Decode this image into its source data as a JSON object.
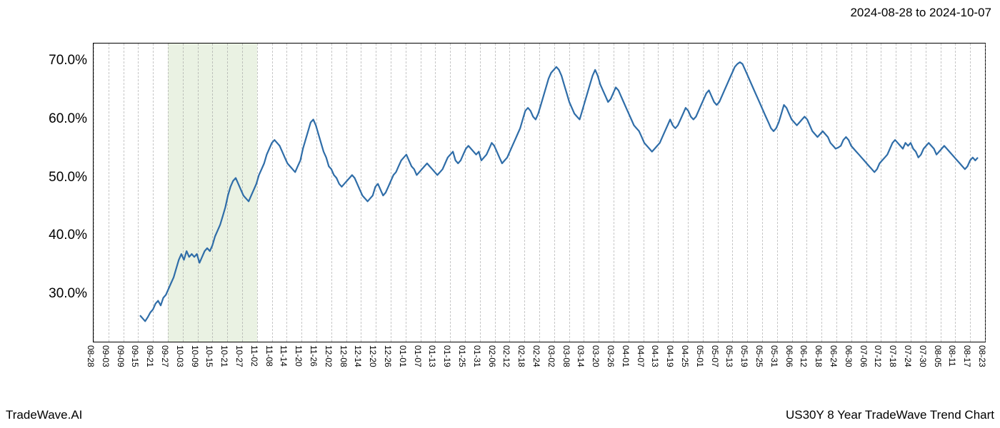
{
  "header": {
    "date_range": "2024-08-28 to 2024-10-07"
  },
  "footer": {
    "left": "TradeWave.AI",
    "right": "US30Y 8 Year TradeWave Trend Chart"
  },
  "chart": {
    "type": "line",
    "background_color": "#ffffff",
    "line_color": "#2f6da8",
    "line_width": 2.2,
    "grid_color": "#999999",
    "grid_dash": "4,3",
    "highlight": {
      "color": "#d8e8cc",
      "opacity": 0.55,
      "x_start_index": 5,
      "x_end_index": 11
    },
    "y_axis": {
      "min": 22,
      "max": 73,
      "ticks": [
        30,
        40,
        50,
        60,
        70
      ],
      "tick_format_suffix": ".0%",
      "label_fontsize": 19
    },
    "x_axis": {
      "labels": [
        "08-28",
        "09-03",
        "09-09",
        "09-15",
        "09-21",
        "09-27",
        "10-03",
        "10-09",
        "10-15",
        "10-21",
        "10-27",
        "11-02",
        "11-08",
        "11-14",
        "11-20",
        "11-26",
        "12-02",
        "12-08",
        "12-14",
        "12-20",
        "12-26",
        "01-01",
        "01-07",
        "01-13",
        "01-19",
        "01-25",
        "01-31",
        "02-06",
        "02-12",
        "02-18",
        "02-24",
        "03-02",
        "03-08",
        "03-14",
        "03-20",
        "03-26",
        "04-01",
        "04-07",
        "04-13",
        "04-19",
        "04-25",
        "05-01",
        "05-07",
        "05-13",
        "05-19",
        "05-25",
        "05-31",
        "06-06",
        "06-12",
        "06-18",
        "06-24",
        "06-30",
        "07-06",
        "07-12",
        "07-18",
        "07-24",
        "07-30",
        "08-05",
        "08-11",
        "08-17",
        "08-23"
      ],
      "label_fontsize": 12,
      "label_rotation_deg": 90
    },
    "series": [
      26.5,
      26.0,
      25.5,
      26.2,
      27.0,
      27.5,
      28.5,
      29.0,
      28.2,
      29.5,
      30.0,
      31.0,
      32.0,
      33.0,
      34.5,
      36.0,
      37.0,
      36.0,
      37.5,
      36.5,
      37.0,
      36.5,
      37.0,
      35.5,
      36.5,
      37.5,
      38.0,
      37.5,
      38.5,
      40.0,
      41.0,
      42.0,
      43.5,
      45.0,
      47.0,
      48.5,
      49.5,
      50.0,
      49.0,
      48.0,
      47.0,
      46.5,
      46.0,
      47.0,
      48.0,
      49.0,
      50.5,
      51.5,
      52.5,
      54.0,
      55.0,
      56.0,
      56.5,
      56.0,
      55.5,
      54.5,
      53.5,
      52.5,
      52.0,
      51.5,
      51.0,
      52.0,
      53.0,
      55.0,
      56.5,
      58.0,
      59.5,
      60.0,
      59.0,
      57.5,
      56.0,
      54.5,
      53.5,
      52.0,
      51.5,
      50.5,
      50.0,
      49.0,
      48.5,
      49.0,
      49.5,
      50.0,
      50.5,
      50.0,
      49.0,
      48.0,
      47.0,
      46.5,
      46.0,
      46.5,
      47.0,
      48.5,
      49.0,
      48.0,
      47.0,
      47.5,
      48.5,
      49.5,
      50.5,
      51.0,
      52.0,
      53.0,
      53.5,
      54.0,
      53.0,
      52.0,
      51.5,
      50.5,
      51.0,
      51.5,
      52.0,
      52.5,
      52.0,
      51.5,
      51.0,
      50.5,
      51.0,
      51.5,
      52.5,
      53.5,
      54.0,
      54.5,
      53.0,
      52.5,
      53.0,
      54.0,
      55.0,
      55.5,
      55.0,
      54.5,
      54.0,
      54.5,
      53.0,
      53.5,
      54.0,
      55.0,
      56.0,
      55.5,
      54.5,
      53.5,
      52.5,
      53.0,
      53.5,
      54.5,
      55.5,
      56.5,
      57.5,
      58.5,
      60.0,
      61.5,
      62.0,
      61.5,
      60.5,
      60.0,
      61.0,
      62.5,
      64.0,
      65.5,
      67.0,
      68.0,
      68.5,
      69.0,
      68.5,
      67.5,
      66.0,
      64.5,
      63.0,
      62.0,
      61.0,
      60.5,
      60.0,
      61.5,
      63.0,
      64.5,
      66.0,
      67.5,
      68.5,
      67.5,
      66.0,
      65.0,
      64.0,
      63.0,
      63.5,
      64.5,
      65.5,
      65.0,
      64.0,
      63.0,
      62.0,
      61.0,
      60.0,
      59.0,
      58.5,
      58.0,
      57.0,
      56.0,
      55.5,
      55.0,
      54.5,
      55.0,
      55.5,
      56.0,
      57.0,
      58.0,
      59.0,
      60.0,
      59.0,
      58.5,
      59.0,
      60.0,
      61.0,
      62.0,
      61.5,
      60.5,
      60.0,
      60.5,
      61.5,
      62.5,
      63.5,
      64.5,
      65.0,
      64.0,
      63.0,
      62.5,
      63.0,
      64.0,
      65.0,
      66.0,
      67.0,
      68.0,
      69.0,
      69.5,
      69.8,
      69.5,
      68.5,
      67.5,
      66.5,
      65.5,
      64.5,
      63.5,
      62.5,
      61.5,
      60.5,
      59.5,
      58.5,
      58.0,
      58.5,
      59.5,
      61.0,
      62.5,
      62.0,
      61.0,
      60.0,
      59.5,
      59.0,
      59.5,
      60.0,
      60.5,
      60.0,
      59.0,
      58.0,
      57.5,
      57.0,
      57.5,
      58.0,
      57.5,
      57.0,
      56.0,
      55.5,
      55.0,
      55.2,
      55.5,
      56.5,
      57.0,
      56.5,
      55.5,
      55.0,
      54.5,
      54.0,
      53.5,
      53.0,
      52.5,
      52.0,
      51.5,
      51.0,
      51.5,
      52.5,
      53.0,
      53.5,
      54.0,
      55.0,
      56.0,
      56.5,
      56.0,
      55.5,
      55.0,
      56.0,
      55.5,
      56.0,
      55.0,
      54.5,
      53.5,
      54.0,
      55.0,
      55.5,
      56.0,
      55.5,
      55.0,
      54.0,
      54.5,
      55.0,
      55.5,
      55.0,
      54.5,
      54.0,
      53.5,
      53.0,
      52.5,
      52.0,
      51.5,
      52.0,
      53.0,
      53.5,
      53.0,
      53.5
    ]
  }
}
